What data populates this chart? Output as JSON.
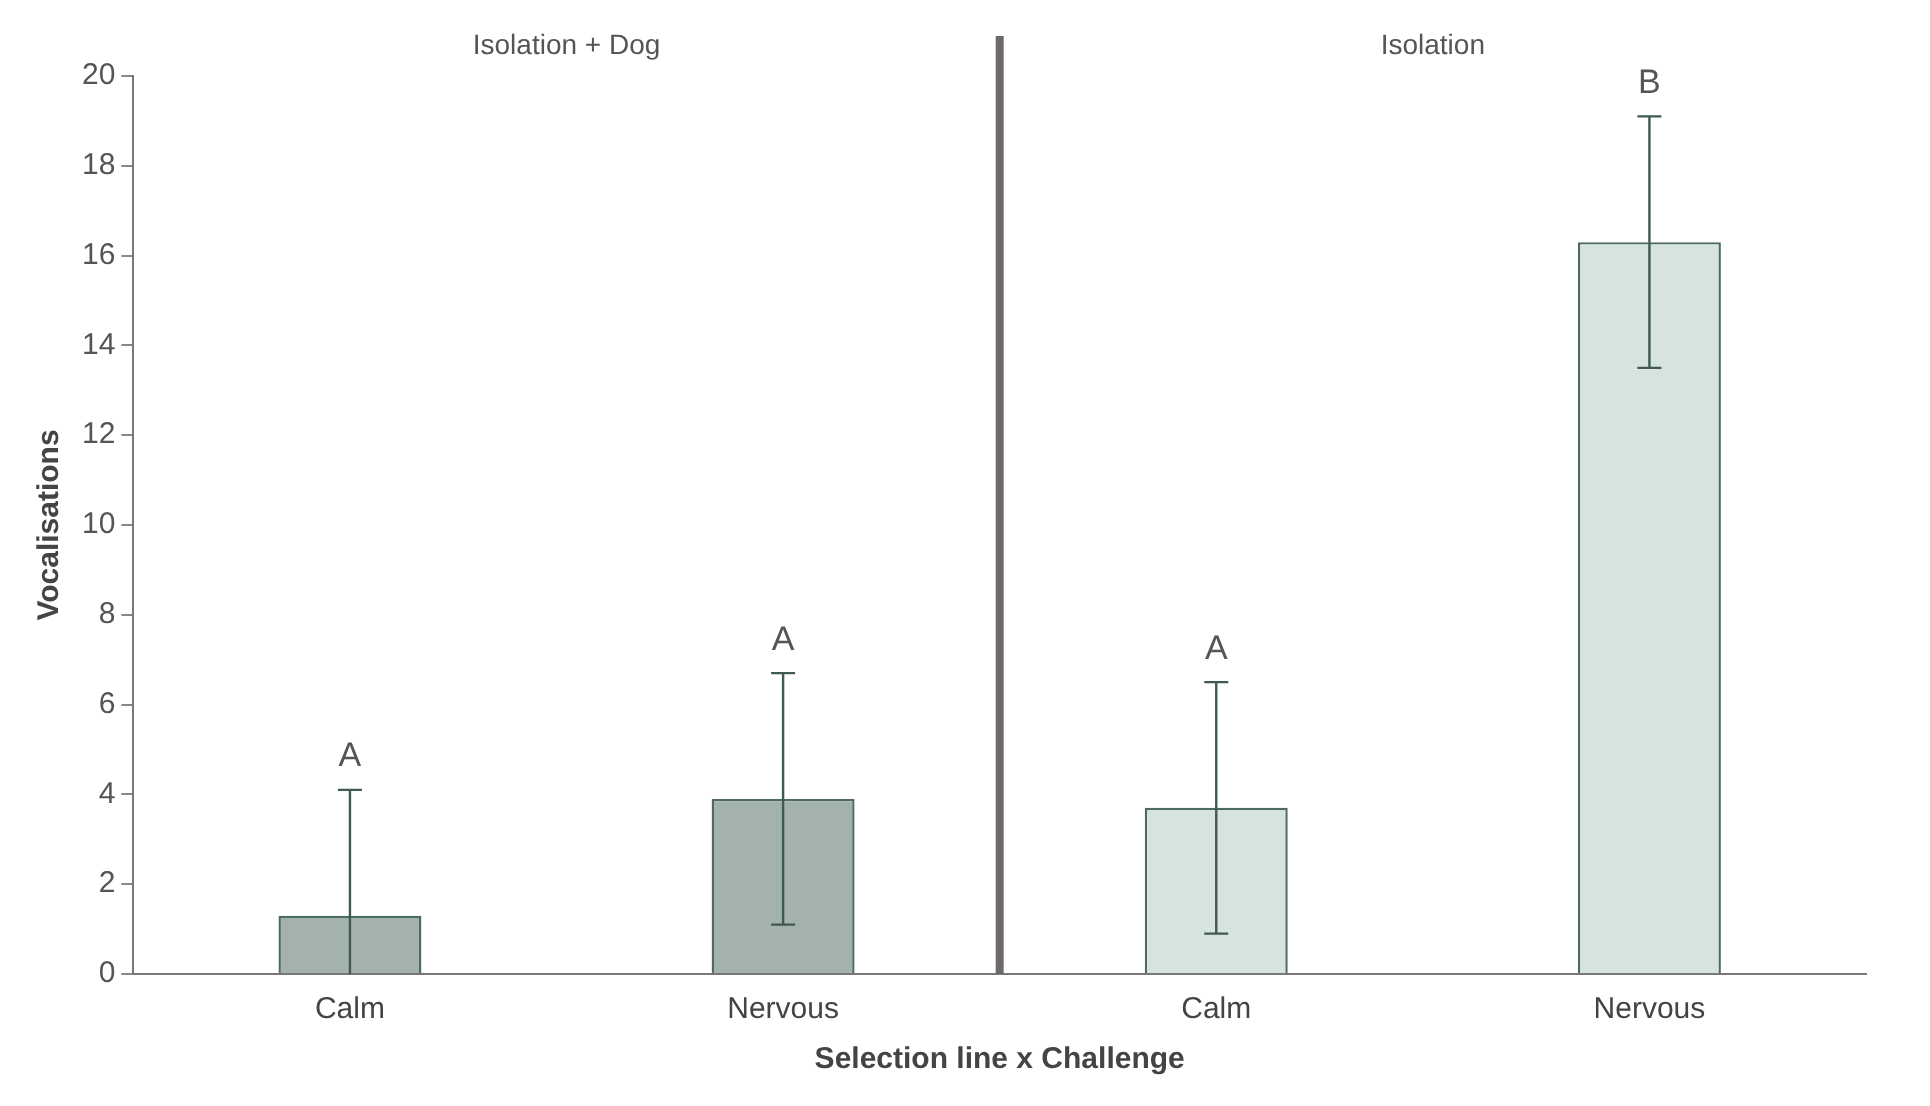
{
  "chart_data": {
    "type": "bar",
    "xlabel": "Selection line x Challenge",
    "ylabel": "Vocalisations",
    "categories": [
      "Calm",
      "Nervous",
      "Calm",
      "Nervous"
    ],
    "series": [
      {
        "color": "#a3b3ab",
        "values": [
          1.3,
          3.9,
          null,
          null
        ],
        "errors": [
          [
            0,
            4.1
          ],
          2.8,
          null,
          null
        ]
      },
      {
        "color": "#d7e3dd",
        "values": [
          null,
          null,
          3.7,
          16.3
        ],
        "errors": [
          null,
          null,
          2.8,
          2.8
        ]
      }
    ],
    "annotations": [
      "Isolation + Dog",
      "Isolation",
      {
        "text": "A",
        "y": 4.1
      },
      {
        "text": "A",
        "y": 6.7
      },
      {
        "text": "A",
        "y": 6.5
      },
      {
        "text": "B",
        "y": 19.1
      }
    ],
    "ylim": [
      0,
      20
    ],
    "yticks": [
      0,
      2,
      4,
      6,
      8,
      10,
      12,
      14,
      16,
      18,
      20
    ],
    "grid": false,
    "legend": false
  }
}
